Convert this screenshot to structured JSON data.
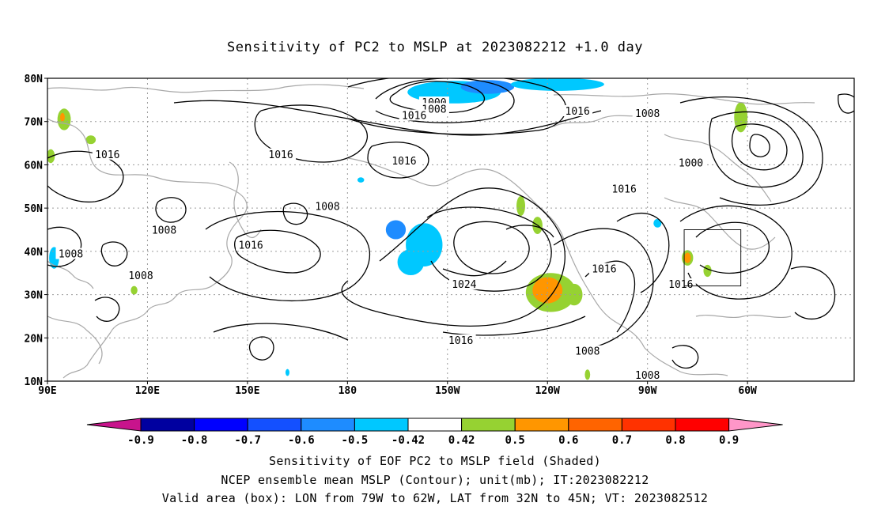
{
  "title": "Sensitivity of PC2 to MSLP at 2023082212 +1.0 day",
  "map": {
    "lat_labels": [
      "80N",
      "70N",
      "60N",
      "50N",
      "40N",
      "30N",
      "20N",
      "10N"
    ],
    "lat_values": [
      80,
      70,
      60,
      50,
      40,
      30,
      20,
      10
    ],
    "lon_labels": [
      "90E",
      "120E",
      "150E",
      "180",
      "150W",
      "120W",
      "90W",
      "60W"
    ],
    "lon_values": [
      90,
      120,
      150,
      180,
      210,
      240,
      270,
      300
    ],
    "extent": {
      "lon_min": 90,
      "lon_max": 332,
      "lat_min": 10,
      "lat_max": 80
    },
    "contour_labels": [
      {
        "text": "1000",
        "lon": 206,
        "lat": 74.5
      },
      {
        "text": "1008",
        "lon": 206,
        "lat": 73.0
      },
      {
        "text": "1016",
        "lon": 200,
        "lat": 71.5
      },
      {
        "text": "1016",
        "lon": 249,
        "lat": 72.5
      },
      {
        "text": "1008",
        "lon": 270,
        "lat": 72.0
      },
      {
        "text": "1000",
        "lon": 283,
        "lat": 60.5
      },
      {
        "text": "1016",
        "lon": 108,
        "lat": 62.5
      },
      {
        "text": "1016",
        "lon": 160,
        "lat": 62.5
      },
      {
        "text": "1016",
        "lon": 197,
        "lat": 61.0
      },
      {
        "text": "1016",
        "lon": 263,
        "lat": 54.5
      },
      {
        "text": "1008",
        "lon": 174,
        "lat": 50.5
      },
      {
        "text": "1008",
        "lon": 125,
        "lat": 45.0
      },
      {
        "text": "1008",
        "lon": 97,
        "lat": 39.5
      },
      {
        "text": "1008",
        "lon": 118,
        "lat": 34.5
      },
      {
        "text": "1016",
        "lon": 151,
        "lat": 41.5
      },
      {
        "text": "1024",
        "lon": 215,
        "lat": 32.5
      },
      {
        "text": "1016",
        "lon": 214,
        "lat": 19.5
      },
      {
        "text": "1016",
        "lon": 257,
        "lat": 36.0
      },
      {
        "text": "1016",
        "lon": 280,
        "lat": 32.5
      },
      {
        "text": "1008",
        "lon": 252,
        "lat": 17.0
      },
      {
        "text": "1008",
        "lon": 270,
        "lat": 11.5
      }
    ],
    "valid_box": {
      "lon_min": 281,
      "lon_max": 298,
      "lat_min": 32,
      "lat_max": 45
    },
    "sensitivity_patches": [
      {
        "level": "neg_0.5",
        "lon": 212,
        "lat": 76.8,
        "rx": 14,
        "ry": 2.6
      },
      {
        "level": "neg_0.6",
        "lon": 222,
        "lat": 78.0,
        "rx": 8,
        "ry": 1.6
      },
      {
        "level": "neg_0.5",
        "lon": 243,
        "lat": 78.6,
        "rx": 14,
        "ry": 1.5
      },
      {
        "level": "neg_0.5",
        "lon": 203,
        "lat": 41.5,
        "rx": 5.5,
        "ry": 5.0
      },
      {
        "level": "neg_0.5",
        "lon": 199,
        "lat": 37.5,
        "rx": 4,
        "ry": 3.0
      },
      {
        "level": "neg_0.6",
        "lon": 194.5,
        "lat": 45.0,
        "rx": 3.0,
        "ry": 2.2
      },
      {
        "level": "neg_0.5",
        "lon": 184,
        "lat": 56.5,
        "rx": 1,
        "ry": 0.6
      },
      {
        "level": "neg_0.5",
        "lon": 92,
        "lat": 38.5,
        "rx": 1.5,
        "ry": 2.5
      },
      {
        "level": "neg_0.5",
        "lon": 273,
        "lat": 46.5,
        "rx": 1.2,
        "ry": 1.0
      },
      {
        "level": "neg_0.5",
        "lon": 162,
        "lat": 12.0,
        "rx": 0.6,
        "ry": 0.8
      },
      {
        "level": "pos_0.5",
        "lon": 241,
        "lat": 30.5,
        "rx": 7.5,
        "ry": 4.5
      },
      {
        "level": "pos_0.6",
        "lon": 240,
        "lat": 31.0,
        "rx": 4.5,
        "ry": 3.0
      },
      {
        "level": "pos_0.5",
        "lon": 248,
        "lat": 30.0,
        "rx": 2.5,
        "ry": 2.5
      },
      {
        "level": "pos_0.5",
        "lon": 232,
        "lat": 50.5,
        "rx": 1.3,
        "ry": 2.3
      },
      {
        "level": "pos_0.5",
        "lon": 237,
        "lat": 46.0,
        "rx": 1.5,
        "ry": 2.0
      },
      {
        "level": "pos_0.5",
        "lon": 298,
        "lat": 71.0,
        "rx": 2.0,
        "ry": 3.5
      },
      {
        "level": "pos_0.5",
        "lon": 95,
        "lat": 70.5,
        "rx": 2.0,
        "ry": 2.5
      },
      {
        "level": "pos_0.6",
        "lon": 94.5,
        "lat": 71.0,
        "rx": 0.7,
        "ry": 1.0
      },
      {
        "level": "pos_0.5",
        "lon": 91,
        "lat": 62.0,
        "rx": 1.2,
        "ry": 1.6
      },
      {
        "level": "pos_0.5",
        "lon": 103,
        "lat": 65.8,
        "rx": 1.5,
        "ry": 1.0
      },
      {
        "level": "pos_0.5",
        "lon": 282,
        "lat": 38.5,
        "rx": 1.7,
        "ry": 1.8
      },
      {
        "level": "pos_0.6",
        "lon": 282,
        "lat": 38.5,
        "rx": 1.0,
        "ry": 1.2
      },
      {
        "level": "pos_0.5",
        "lon": 288,
        "lat": 35.5,
        "rx": 1.2,
        "ry": 1.4
      },
      {
        "level": "pos_0.5",
        "lon": 116,
        "lat": 31.0,
        "rx": 1.0,
        "ry": 1.0
      },
      {
        "level": "pos_0.5",
        "lon": 252,
        "lat": 11.5,
        "rx": 0.8,
        "ry": 1.2
      }
    ]
  },
  "colorbar": {
    "labels": [
      "-0.9",
      "-0.8",
      "-0.7",
      "-0.6",
      "-0.5",
      "-0.42",
      "0.42",
      "0.5",
      "0.6",
      "0.7",
      "0.8",
      "0.9"
    ],
    "colors": {
      "below": "#c8148c",
      "neg_0.9": "#0000a0",
      "neg_0.8": "#0000ff",
      "neg_0.7": "#1450ff",
      "neg_0.6": "#1e8cff",
      "neg_0.5": "#00c8ff",
      "neutral": "#ffffff",
      "pos_0.5": "#96d232",
      "pos_0.6": "#ff9600",
      "pos_0.7": "#ff6400",
      "pos_0.8": "#ff3200",
      "pos_0.9": "#ff0000",
      "above": "#ff96c8"
    }
  },
  "captions": [
    "Sensitivity of EOF PC2 to MSLP field (Shaded)",
    "NCEP ensemble mean MSLP (Contour); unit(mb); IT:2023082212",
    "Valid area (box): LON from 79W to 62W, LAT from 32N to 45N; VT: 2023082512"
  ]
}
